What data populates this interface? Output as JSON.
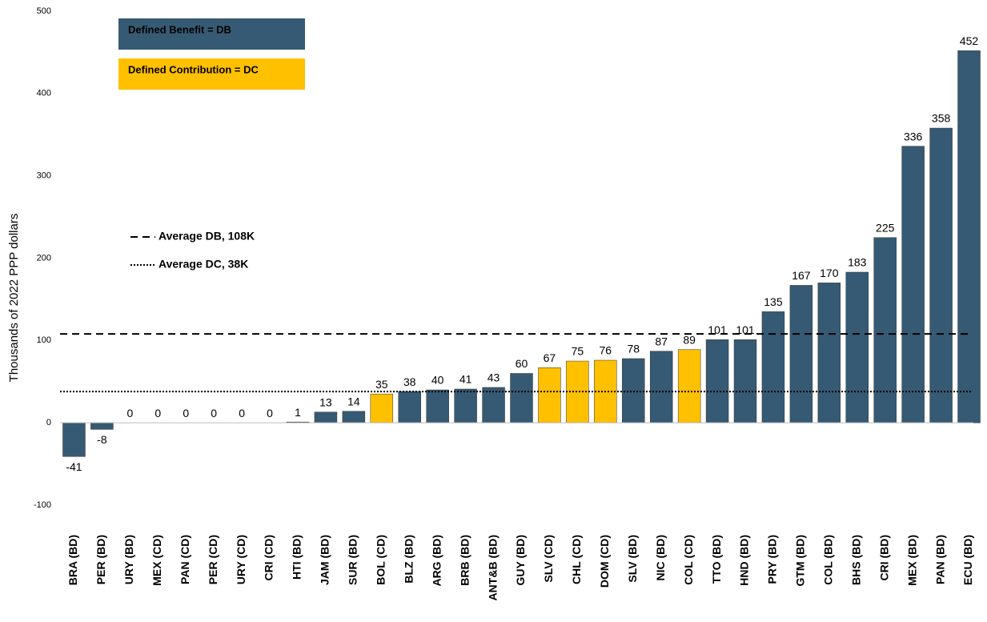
{
  "chart_data": {
    "type": "bar",
    "y_label": "Thousands of 2022 PPP dollars",
    "categories": [
      "BRA (BD)",
      "PER (BD)",
      "URY (BD)",
      "MEX (CD)",
      "PAN (CD)",
      "PER (CD)",
      "URY (CD)",
      "CRI (CD)",
      "HTI (BD)",
      "JAM (BD)",
      "SUR (BD)",
      "BOL (CD)",
      "BLZ (BD)",
      "ARG (BD)",
      "BRB (BD)",
      "ANT&B (BD)",
      "GUY (BD)",
      "SLV (CD)",
      "CHL (CD)",
      "DOM (CD)",
      "SLV (BD)",
      "NIC (BD)",
      "COL (CD)",
      "TTO (BD)",
      "HND (BD)",
      "PRY (BD)",
      "GTM (BD)",
      "COL (BD)",
      "BHS (BD)",
      "CRI (BD)",
      "MEX (BD)",
      "PAN (BD)",
      "ECU (BD)"
    ],
    "values": [
      -41,
      -8,
      0,
      0,
      0,
      0,
      0,
      0,
      1,
      13,
      14,
      35,
      38,
      40,
      41,
      43,
      60,
      67,
      75,
      76,
      78,
      87,
      89,
      101,
      101,
      135,
      167,
      170,
      183,
      225,
      336,
      358,
      452
    ],
    "colors": [
      "#365a73",
      "#365a73",
      "#365a73",
      "#ffc000",
      "#ffc000",
      "#ffc000",
      "#ffc000",
      "#ffc000",
      "#365a73",
      "#365a73",
      "#365a73",
      "#ffc000",
      "#365a73",
      "#365a73",
      "#365a73",
      "#365a73",
      "#365a73",
      "#ffc000",
      "#ffc000",
      "#ffc000",
      "#365a73",
      "#365a73",
      "#ffc000",
      "#365a73",
      "#365a73",
      "#365a73",
      "#365a73",
      "#365a73",
      "#365a73",
      "#365a73",
      "#365a73",
      "#365a73",
      "#365a73"
    ],
    "legend": [
      {
        "label": "Defined Benefit = DB",
        "color": "#365a73"
      },
      {
        "label": "Defined Contribution = DC",
        "color": "#ffc000"
      }
    ],
    "reference_lines": [
      {
        "label": "Average DB, 108K",
        "value": 108,
        "style": "dashed"
      },
      {
        "label": "Average DC, 38K",
        "value": 38,
        "style": "dotted"
      }
    ],
    "ylim": [
      -100,
      500
    ],
    "yticks": [
      -100,
      0,
      100,
      200,
      300,
      400,
      500
    ]
  }
}
